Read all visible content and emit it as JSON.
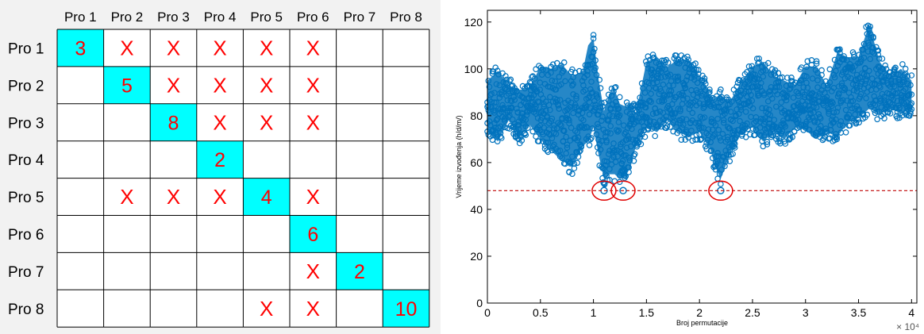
{
  "matrix": {
    "column_headers": [
      "Pro 1",
      "Pro 2",
      "Pro 3",
      "Pro 4",
      "Pro 5",
      "Pro 6",
      "Pro 7",
      "Pro 8"
    ],
    "row_headers": [
      "Pro 1",
      "Pro 2",
      "Pro 3",
      "Pro 4",
      "Pro 5",
      "Pro 6",
      "Pro 7",
      "Pro 8"
    ],
    "cells": [
      [
        "3",
        "X",
        "X",
        "X",
        "X",
        "X",
        "",
        ""
      ],
      [
        "",
        "5",
        "X",
        "X",
        "X",
        "X",
        "",
        ""
      ],
      [
        "",
        "",
        "8",
        "X",
        "X",
        "X",
        "",
        ""
      ],
      [
        "",
        "",
        "",
        "2",
        "",
        "",
        "",
        ""
      ],
      [
        "",
        "X",
        "X",
        "X",
        "4",
        "X",
        "",
        ""
      ],
      [
        "",
        "",
        "",
        "",
        "",
        "6",
        "",
        ""
      ],
      [
        "",
        "",
        "",
        "",
        "",
        "X",
        "2",
        ""
      ],
      [
        "",
        "",
        "",
        "",
        "X",
        "X",
        "",
        "10"
      ]
    ],
    "colors": {
      "diagonal_fill": "#00ffff",
      "mark_text": "#ff0000",
      "grid": "#000000",
      "background": "#f2f2f2"
    }
  },
  "chart_data": {
    "type": "scatter",
    "xlabel": "Broj permutacije",
    "ylabel": "Vrijeme izvođenja (h/d/m/)",
    "xlim": [
      0,
      4.05
    ],
    "ylim": [
      0,
      125
    ],
    "x_exponent_label": "× 10⁴",
    "xticks": [
      "0",
      "0.5",
      "1",
      "1.5",
      "2",
      "2.5",
      "3",
      "3.5",
      "4"
    ],
    "yticks": [
      "0",
      "20",
      "40",
      "60",
      "80",
      "100",
      "120"
    ],
    "reference_line": {
      "y": 48,
      "color": "#c00000",
      "style": "dashed"
    },
    "highlighted_minima": [
      {
        "x": 1.1,
        "y": 48
      },
      {
        "x": 1.28,
        "y": 48
      },
      {
        "x": 2.2,
        "y": 48
      }
    ],
    "envelope": {
      "x": [
        0,
        0.1,
        0.2,
        0.3,
        0.4,
        0.5,
        0.6,
        0.7,
        0.8,
        0.9,
        0.95,
        1.0,
        1.05,
        1.1,
        1.15,
        1.2,
        1.25,
        1.3,
        1.35,
        1.4,
        1.5,
        1.6,
        1.7,
        1.8,
        1.9,
        2.0,
        2.1,
        2.15,
        2.2,
        2.25,
        2.3,
        2.4,
        2.5,
        2.6,
        2.7,
        2.8,
        2.9,
        3.0,
        3.1,
        3.2,
        3.3,
        3.4,
        3.5,
        3.6,
        3.7,
        3.8,
        3.9,
        4.0
      ],
      "upper": [
        98,
        102,
        96,
        94,
        95,
        104,
        103,
        105,
        100,
        102,
        113,
        116,
        98,
        85,
        92,
        94,
        88,
        87,
        88,
        84,
        106,
        108,
        104,
        107,
        107,
        100,
        92,
        90,
        92,
        90,
        90,
        98,
        104,
        106,
        100,
        98,
        96,
        104,
        104,
        96,
        110,
        108,
        108,
        122,
        106,
        100,
        103,
        98
      ],
      "lower": [
        70,
        66,
        75,
        68,
        73,
        67,
        62,
        58,
        55,
        64,
        66,
        72,
        60,
        50,
        52,
        52,
        50,
        51,
        55,
        64,
        72,
        70,
        75,
        70,
        68,
        70,
        63,
        55,
        50,
        56,
        62,
        70,
        72,
        66,
        70,
        67,
        72,
        71,
        67,
        70,
        68,
        74,
        76,
        80,
        78,
        80,
        78,
        80
      ]
    },
    "colors": {
      "marker": "#0072bd",
      "reference_line": "#c00000",
      "highlight_circle": "#e00000"
    }
  }
}
